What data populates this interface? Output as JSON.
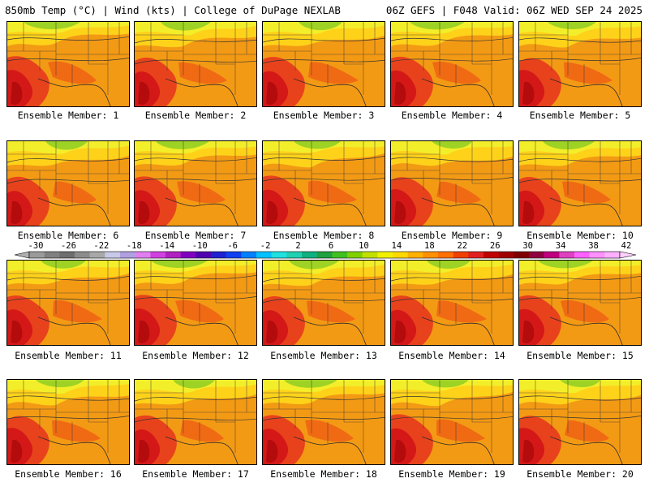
{
  "header": {
    "left": "850mb Temp (°C) | Wind (kts) | College of DuPage NEXLAB",
    "right": "06Z GEFS | F048 Valid: 06Z WED SEP 24 2025"
  },
  "panels": [
    {
      "label": "Ensemble Member: 1"
    },
    {
      "label": "Ensemble Member: 2"
    },
    {
      "label": "Ensemble Member: 3"
    },
    {
      "label": "Ensemble Member: 4"
    },
    {
      "label": "Ensemble Member: 5"
    },
    {
      "label": "Ensemble Member: 6"
    },
    {
      "label": "Ensemble Member: 7"
    },
    {
      "label": "Ensemble Member: 8"
    },
    {
      "label": "Ensemble Member: 9"
    },
    {
      "label": "Ensemble Member: 10"
    },
    {
      "label": "Ensemble Member: 11"
    },
    {
      "label": "Ensemble Member: 12"
    },
    {
      "label": "Ensemble Member: 13"
    },
    {
      "label": "Ensemble Member: 14"
    },
    {
      "label": "Ensemble Member: 15"
    },
    {
      "label": "Ensemble Member: 16"
    },
    {
      "label": "Ensemble Member: 17"
    },
    {
      "label": "Ensemble Member: 18"
    },
    {
      "label": "Ensemble Member: 19"
    },
    {
      "label": "Ensemble Member: 20"
    }
  ],
  "colorbar": {
    "tick_labels": [
      "-30",
      "-26",
      "-22",
      "-18",
      "-14",
      "-10",
      "-6",
      "-2",
      "2",
      "6",
      "10",
      "14",
      "18",
      "22",
      "26",
      "30",
      "34",
      "38",
      "42"
    ],
    "colors": [
      "#9a9a9a",
      "#808080",
      "#6e6e6e",
      "#8c8c8c",
      "#a8a8a8",
      "#c8c8e8",
      "#b0a0e0",
      "#e080f0",
      "#d040e0",
      "#b020c0",
      "#8000c0",
      "#5000b0",
      "#2020d0",
      "#1040f0",
      "#0080ff",
      "#00c0ff",
      "#20e0e0",
      "#20d0b0",
      "#10b080",
      "#20a040",
      "#40c020",
      "#80d000",
      "#c0e000",
      "#f0f000",
      "#ffd800",
      "#ffb000",
      "#ff9000",
      "#ff7000",
      "#f04000",
      "#e02020",
      "#c00000",
      "#a00000",
      "#800000",
      "#900040",
      "#c00080",
      "#e040c0",
      "#ff60ff",
      "#ff90ff",
      "#ffb0ff"
    ]
  }
}
